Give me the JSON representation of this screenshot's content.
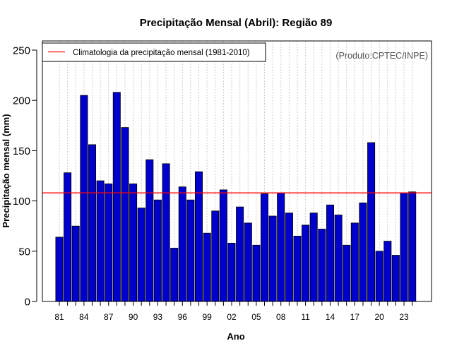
{
  "chart_data": {
    "type": "bar",
    "title": "Precipitação Mensal (Abril): Região 89",
    "xlabel": "Ano",
    "ylabel": "Precipitação mensal (mm)",
    "credit": "(Produto:CPTEC/INPE)",
    "ylim": [
      0,
      260
    ],
    "yticks": [
      "0",
      "50",
      "100",
      "150",
      "200",
      "250"
    ],
    "categories": [
      "1981",
      "1982",
      "1983",
      "1984",
      "1985",
      "1986",
      "1987",
      "1988",
      "1989",
      "1990",
      "1991",
      "1992",
      "1993",
      "1994",
      "1995",
      "1996",
      "1997",
      "1998",
      "1999",
      "2000",
      "2001",
      "2002",
      "2003",
      "2004",
      "2005",
      "2006",
      "2007",
      "2008",
      "2009",
      "2010",
      "2011",
      "2012",
      "2013",
      "2014",
      "2015",
      "2016",
      "2017",
      "2018",
      "2019",
      "2020",
      "2021",
      "2022",
      "2023",
      "2024"
    ],
    "xtick_labels": [
      "81",
      "",
      "",
      "84",
      "",
      "",
      "87",
      "",
      "",
      "90",
      "",
      "",
      "93",
      "",
      "",
      "96",
      "",
      "",
      "99",
      "",
      "",
      "02",
      "",
      "",
      "05",
      "",
      "",
      "08",
      "",
      "",
      "11",
      "",
      "",
      "14",
      "",
      "",
      "17",
      "",
      "",
      "20",
      "",
      "",
      "23",
      ""
    ],
    "series": [
      {
        "name": "Precipitação mensal",
        "color": "#0000cc",
        "values": [
          64,
          128,
          75,
          205,
          156,
          120,
          117,
          208,
          173,
          117,
          93,
          141,
          101,
          137,
          53,
          114,
          101,
          129,
          68,
          90,
          111,
          58,
          94,
          78,
          56,
          107,
          85,
          108,
          88,
          65,
          76,
          88,
          72,
          96,
          86,
          56,
          78,
          98,
          158,
          50,
          60,
          46,
          108,
          109
        ]
      }
    ],
    "climatology": {
      "label": "Climatologia da precipitação mensal (1981-2010)",
      "value": 108,
      "color": "#ff0000"
    },
    "legend_position": "top-left",
    "grid": "vertical-dotted"
  }
}
